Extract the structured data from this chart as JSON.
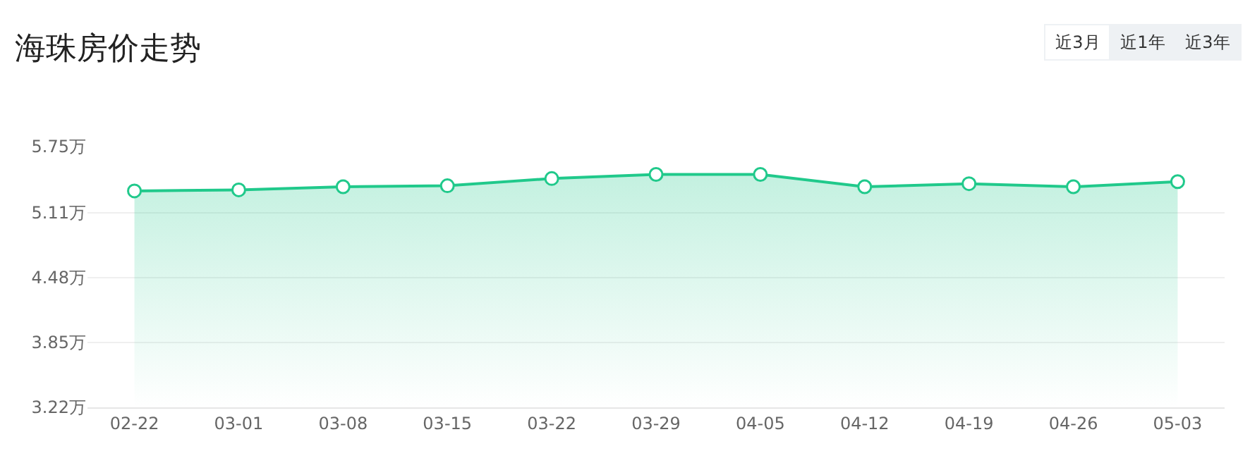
{
  "chart_data": {
    "type": "area",
    "title": "海珠房价走势",
    "annotations": [
      "近3月",
      "近1年",
      "近3年"
    ],
    "categories": [
      "02-22",
      "03-01",
      "03-08",
      "03-15",
      "03-22",
      "03-29",
      "04-05",
      "04-12",
      "04-19",
      "04-26",
      "05-03"
    ],
    "series": [
      {
        "color": "#20c98b",
        "values": [
          5.32,
          5.33,
          5.36,
          5.37,
          5.44,
          5.48,
          5.48,
          5.36,
          5.39,
          5.36,
          5.41
        ]
      }
    ],
    "ylim": [
      3.22,
      5.75
    ],
    "yticks": [
      {
        "value": 3.22,
        "label": "3.22万"
      },
      {
        "value": 3.85,
        "label": "3.85万"
      },
      {
        "value": 4.48,
        "label": "4.48万"
      },
      {
        "value": 5.11,
        "label": "5.11万"
      },
      {
        "value": 5.75,
        "label": "5.75万"
      }
    ],
    "grid": "y",
    "marker": "circle",
    "legend": false
  }
}
